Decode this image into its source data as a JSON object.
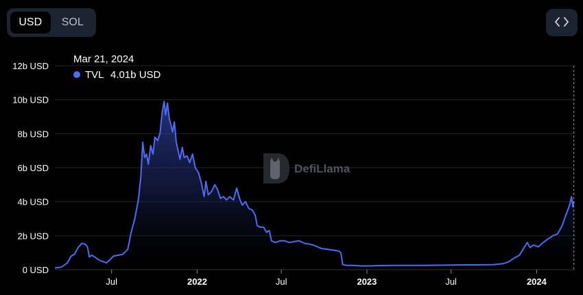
{
  "toggle": {
    "options": [
      "USD",
      "SOL"
    ],
    "selected": "USD"
  },
  "embed_button": {
    "icon": "code-brackets-icon",
    "label": "<>"
  },
  "watermark": {
    "text": "DefiLlama",
    "icon": "llama-icon"
  },
  "colors": {
    "accent": "#4f6bf0",
    "background": "#000000",
    "toggle_bg": "#1c2331",
    "grid": "#2b2b2b"
  },
  "tooltip": {
    "date": "Mar 21, 2024",
    "series": "TVL",
    "value": "4.01b USD"
  },
  "chart_data": {
    "type": "area",
    "title": "",
    "xlabel": "",
    "ylabel": "",
    "ylim": [
      0,
      12
    ],
    "y_unit": "b USD",
    "y_ticks": [
      0,
      2,
      4,
      6,
      8,
      10,
      12
    ],
    "y_tick_labels": [
      "0 USD",
      "2b USD",
      "4b USD",
      "6b USD",
      "8b USD",
      "10b USD",
      "12b USD"
    ],
    "x_ticks": [
      {
        "date": "2021-07-01",
        "label": "Jul",
        "bold": false
      },
      {
        "date": "2022-01-01",
        "label": "2022",
        "bold": true
      },
      {
        "date": "2022-07-01",
        "label": "Jul",
        "bold": false
      },
      {
        "date": "2023-01-01",
        "label": "2023",
        "bold": true
      },
      {
        "date": "2023-07-01",
        "label": "Jul",
        "bold": false
      },
      {
        "date": "2024-01-01",
        "label": "2024",
        "bold": true
      }
    ],
    "xlim": [
      "2021-03-01",
      "2024-03-23"
    ],
    "grid": true,
    "legend": "top-left",
    "series": [
      {
        "name": "TVL",
        "color": "#4f6bf0",
        "points": [
          [
            "2021-03-01",
            0.1
          ],
          [
            "2021-03-15",
            0.15
          ],
          [
            "2021-03-28",
            0.4
          ],
          [
            "2021-04-05",
            0.8
          ],
          [
            "2021-04-12",
            0.9
          ],
          [
            "2021-04-20",
            1.3
          ],
          [
            "2021-04-28",
            1.55
          ],
          [
            "2021-05-05",
            1.5
          ],
          [
            "2021-05-10",
            1.35
          ],
          [
            "2021-05-14",
            0.75
          ],
          [
            "2021-05-20",
            0.85
          ],
          [
            "2021-05-28",
            0.7
          ],
          [
            "2021-06-05",
            0.55
          ],
          [
            "2021-06-20",
            0.4
          ],
          [
            "2021-06-28",
            0.6
          ],
          [
            "2021-07-05",
            0.8
          ],
          [
            "2021-07-15",
            0.85
          ],
          [
            "2021-07-25",
            0.9
          ],
          [
            "2021-08-05",
            1.2
          ],
          [
            "2021-08-12",
            2.2
          ],
          [
            "2021-08-20",
            3.0
          ],
          [
            "2021-08-28",
            4.2
          ],
          [
            "2021-09-02",
            5.5
          ],
          [
            "2021-09-06",
            7.5
          ],
          [
            "2021-09-10",
            6.6
          ],
          [
            "2021-09-14",
            6.8
          ],
          [
            "2021-09-18",
            6.2
          ],
          [
            "2021-09-23",
            7.3
          ],
          [
            "2021-09-28",
            6.8
          ],
          [
            "2021-10-02",
            7.8
          ],
          [
            "2021-10-08",
            7.6
          ],
          [
            "2021-10-13",
            8.0
          ],
          [
            "2021-10-18",
            9.3
          ],
          [
            "2021-10-22",
            9.9
          ],
          [
            "2021-10-25",
            9.1
          ],
          [
            "2021-10-29",
            9.8
          ],
          [
            "2021-11-02",
            8.9
          ],
          [
            "2021-11-05",
            8.6
          ],
          [
            "2021-11-09",
            8.1
          ],
          [
            "2021-11-13",
            8.7
          ],
          [
            "2021-11-17",
            7.5
          ],
          [
            "2021-11-21",
            7.0
          ],
          [
            "2021-11-25",
            6.5
          ],
          [
            "2021-11-30",
            7.2
          ],
          [
            "2021-12-04",
            6.6
          ],
          [
            "2021-12-10",
            6.7
          ],
          [
            "2021-12-16",
            6.3
          ],
          [
            "2021-12-22",
            6.8
          ],
          [
            "2021-12-28",
            6.0
          ],
          [
            "2022-01-04",
            5.7
          ],
          [
            "2022-01-10",
            5.1
          ],
          [
            "2022-01-16",
            4.3
          ],
          [
            "2022-01-20",
            5.2
          ],
          [
            "2022-01-25",
            4.4
          ],
          [
            "2022-02-01",
            4.6
          ],
          [
            "2022-02-08",
            5.0
          ],
          [
            "2022-02-14",
            4.7
          ],
          [
            "2022-02-20",
            4.2
          ],
          [
            "2022-02-27",
            4.3
          ],
          [
            "2022-03-05",
            4.1
          ],
          [
            "2022-03-12",
            4.3
          ],
          [
            "2022-03-20",
            4.1
          ],
          [
            "2022-03-27",
            4.8
          ],
          [
            "2022-04-02",
            4.2
          ],
          [
            "2022-04-08",
            3.8
          ],
          [
            "2022-04-15",
            4.0
          ],
          [
            "2022-04-22",
            3.6
          ],
          [
            "2022-04-30",
            3.5
          ],
          [
            "2022-05-06",
            3.2
          ],
          [
            "2022-05-10",
            2.6
          ],
          [
            "2022-05-16",
            2.5
          ],
          [
            "2022-05-24",
            2.5
          ],
          [
            "2022-05-30",
            2.2
          ],
          [
            "2022-06-05",
            2.3
          ],
          [
            "2022-06-10",
            1.7
          ],
          [
            "2022-06-18",
            1.6
          ],
          [
            "2022-06-28",
            1.7
          ],
          [
            "2022-07-08",
            1.7
          ],
          [
            "2022-07-18",
            1.6
          ],
          [
            "2022-07-28",
            1.65
          ],
          [
            "2022-08-08",
            1.7
          ],
          [
            "2022-08-20",
            1.55
          ],
          [
            "2022-09-01",
            1.5
          ],
          [
            "2022-09-12",
            1.4
          ],
          [
            "2022-09-25",
            1.25
          ],
          [
            "2022-10-08",
            1.2
          ],
          [
            "2022-10-20",
            1.15
          ],
          [
            "2022-11-01",
            1.1
          ],
          [
            "2022-11-06",
            1.0
          ],
          [
            "2022-11-10",
            0.3
          ],
          [
            "2022-11-20",
            0.25
          ],
          [
            "2022-12-01",
            0.25
          ],
          [
            "2022-12-20",
            0.22
          ],
          [
            "2023-01-10",
            0.22
          ],
          [
            "2023-02-01",
            0.24
          ],
          [
            "2023-03-01",
            0.25
          ],
          [
            "2023-04-01",
            0.25
          ],
          [
            "2023-05-01",
            0.25
          ],
          [
            "2023-06-01",
            0.26
          ],
          [
            "2023-07-01",
            0.27
          ],
          [
            "2023-08-01",
            0.28
          ],
          [
            "2023-09-01",
            0.28
          ],
          [
            "2023-10-01",
            0.3
          ],
          [
            "2023-10-20",
            0.35
          ],
          [
            "2023-11-01",
            0.45
          ],
          [
            "2023-11-15",
            0.7
          ],
          [
            "2023-11-25",
            0.85
          ],
          [
            "2023-12-05",
            1.3
          ],
          [
            "2023-12-12",
            1.6
          ],
          [
            "2023-12-18",
            1.3
          ],
          [
            "2023-12-25",
            1.45
          ],
          [
            "2024-01-05",
            1.35
          ],
          [
            "2024-01-15",
            1.6
          ],
          [
            "2024-01-25",
            1.8
          ],
          [
            "2024-02-05",
            2.0
          ],
          [
            "2024-02-15",
            2.1
          ],
          [
            "2024-02-25",
            2.6
          ],
          [
            "2024-03-05",
            3.3
          ],
          [
            "2024-03-12",
            3.8
          ],
          [
            "2024-03-16",
            4.3
          ],
          [
            "2024-03-19",
            3.7
          ],
          [
            "2024-03-21",
            4.01
          ]
        ]
      }
    ]
  }
}
